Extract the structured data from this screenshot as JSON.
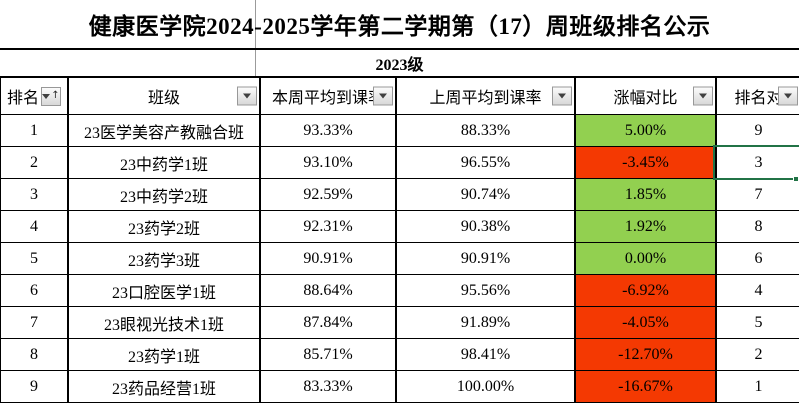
{
  "title": "健康医学院2024-2025学年第二学期第（17）周班级排名公示",
  "group_header": "2023级",
  "table": {
    "columns": [
      {
        "key": "rank",
        "label": "排名",
        "sorted_asc": true
      },
      {
        "key": "class_name",
        "label": "班级",
        "sorted_asc": false
      },
      {
        "key": "this_week",
        "label": "本周平均到课率",
        "sorted_asc": false
      },
      {
        "key": "last_week",
        "label": "上周平均到课率",
        "sorted_asc": false
      },
      {
        "key": "change",
        "label": "涨幅对比",
        "sorted_asc": false
      },
      {
        "key": "rank_compare",
        "label": "排名对",
        "sorted_asc": false
      }
    ],
    "rows": [
      {
        "rank": "1",
        "class_name": "23医学美容产教融合班",
        "this_week": "93.33%",
        "last_week": "88.33%",
        "change": "5.00%",
        "change_positive": true,
        "rank_compare": "9"
      },
      {
        "rank": "2",
        "class_name": "23中药学1班",
        "this_week": "93.10%",
        "last_week": "96.55%",
        "change": "-3.45%",
        "change_positive": false,
        "rank_compare": "3"
      },
      {
        "rank": "3",
        "class_name": "23中药学2班",
        "this_week": "92.59%",
        "last_week": "90.74%",
        "change": "1.85%",
        "change_positive": true,
        "rank_compare": "7"
      },
      {
        "rank": "4",
        "class_name": "23药学2班",
        "this_week": "92.31%",
        "last_week": "90.38%",
        "change": "1.92%",
        "change_positive": true,
        "rank_compare": "8"
      },
      {
        "rank": "5",
        "class_name": "23药学3班",
        "this_week": "90.91%",
        "last_week": "90.91%",
        "change": "0.00%",
        "change_positive": true,
        "rank_compare": "6"
      },
      {
        "rank": "6",
        "class_name": "23口腔医学1班",
        "this_week": "88.64%",
        "last_week": "95.56%",
        "change": "-6.92%",
        "change_positive": false,
        "rank_compare": "4"
      },
      {
        "rank": "7",
        "class_name": "23眼视光技术1班",
        "this_week": "87.84%",
        "last_week": "91.89%",
        "change": "-4.05%",
        "change_positive": false,
        "rank_compare": "5"
      },
      {
        "rank": "8",
        "class_name": "23药学1班",
        "this_week": "85.71%",
        "last_week": "98.41%",
        "change": "-12.70%",
        "change_positive": false,
        "rank_compare": "2"
      },
      {
        "rank": "9",
        "class_name": "23药品经营1班",
        "this_week": "83.33%",
        "last_week": "100.00%",
        "change": "-16.67%",
        "change_positive": false,
        "rank_compare": "1"
      }
    ]
  },
  "selection": {
    "row_index": 1,
    "column_key": "rank_compare",
    "value": "3"
  },
  "colors": {
    "positive_fill": "#92D050",
    "negative_fill": "#F43902",
    "selection_border": "#217346",
    "gridline": "#000000",
    "title_gridline": "#9B9B9B"
  }
}
